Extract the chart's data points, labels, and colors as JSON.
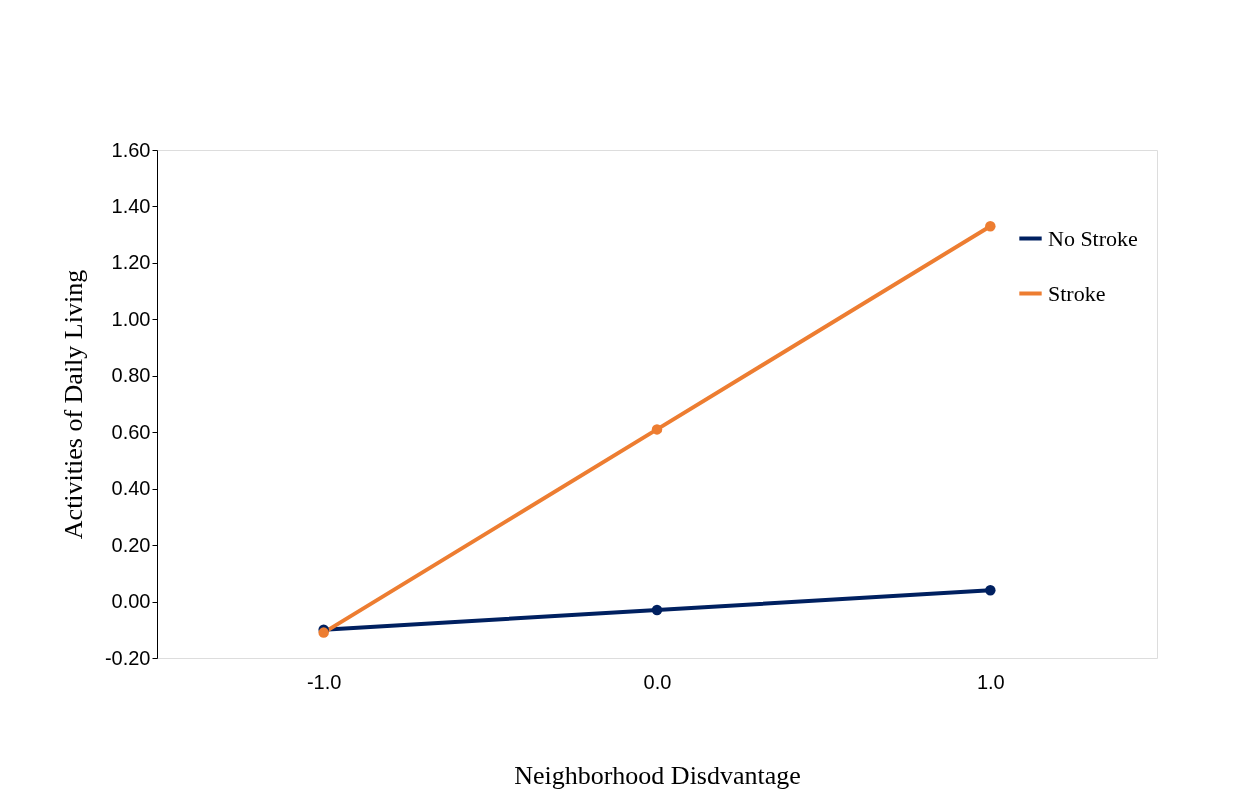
{
  "chart_data": {
    "type": "line",
    "xlabel": "Neighborhood Disdvantage",
    "ylabel": "Activities of Daily Living",
    "categories": [
      "-1.0",
      "0.0",
      "1.0"
    ],
    "series": [
      {
        "name": "No Stroke",
        "color": "#002060",
        "values": [
          -0.1,
          -0.03,
          0.04
        ]
      },
      {
        "name": "Stroke",
        "color": "#ed7d31",
        "values": [
          -0.11,
          0.61,
          1.33
        ]
      }
    ],
    "ylim": [
      -0.2,
      1.6
    ],
    "yticks": [
      {
        "value": -0.2,
        "label": "-0.20"
      },
      {
        "value": 0,
        "label": "0.00"
      },
      {
        "value": 0.2,
        "label": "0.20"
      },
      {
        "value": 0.4,
        "label": "0.40"
      },
      {
        "value": 0.6,
        "label": "0.60"
      },
      {
        "value": 0.8,
        "label": "0.80"
      },
      {
        "value": 1.0,
        "label": "1.00"
      },
      {
        "value": 1.2,
        "label": "1.20"
      },
      {
        "value": 1.4,
        "label": "1.40"
      },
      {
        "value": 1.6,
        "label": "1.60"
      }
    ],
    "marker": "circle",
    "line_style": "solid",
    "grid": false,
    "legend": "right"
  }
}
